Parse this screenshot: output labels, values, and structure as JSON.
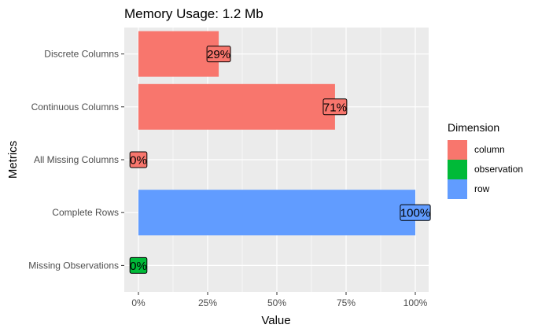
{
  "chart_data": {
    "type": "bar",
    "orientation": "horizontal",
    "title": "Memory Usage: 1.2 Mb",
    "xlabel": "Value",
    "ylabel": "Metrics",
    "xlim": [
      0,
      1
    ],
    "x_ticks": [
      "0%",
      "25%",
      "50%",
      "75%",
      "100%"
    ],
    "grid": true,
    "legend_position": "right",
    "legend_title": "Dimension",
    "categories": [
      "Discrete Columns",
      "Continuous Columns",
      "All Missing Columns",
      "Complete Rows",
      "Missing Observations"
    ],
    "values": [
      0.29,
      0.71,
      0.0,
      1.0,
      0.0
    ],
    "labels": [
      "29%",
      "71%",
      "0%",
      "100%",
      "0%"
    ],
    "dimension": [
      "column",
      "column",
      "column",
      "row",
      "observation"
    ],
    "legend": [
      {
        "name": "column",
        "color": "#F8766D"
      },
      {
        "name": "observation",
        "color": "#00BA38"
      },
      {
        "name": "row",
        "color": "#619CFF"
      }
    ],
    "panel_background": "#EBEBEB",
    "grid_color": "#FFFFFF"
  }
}
